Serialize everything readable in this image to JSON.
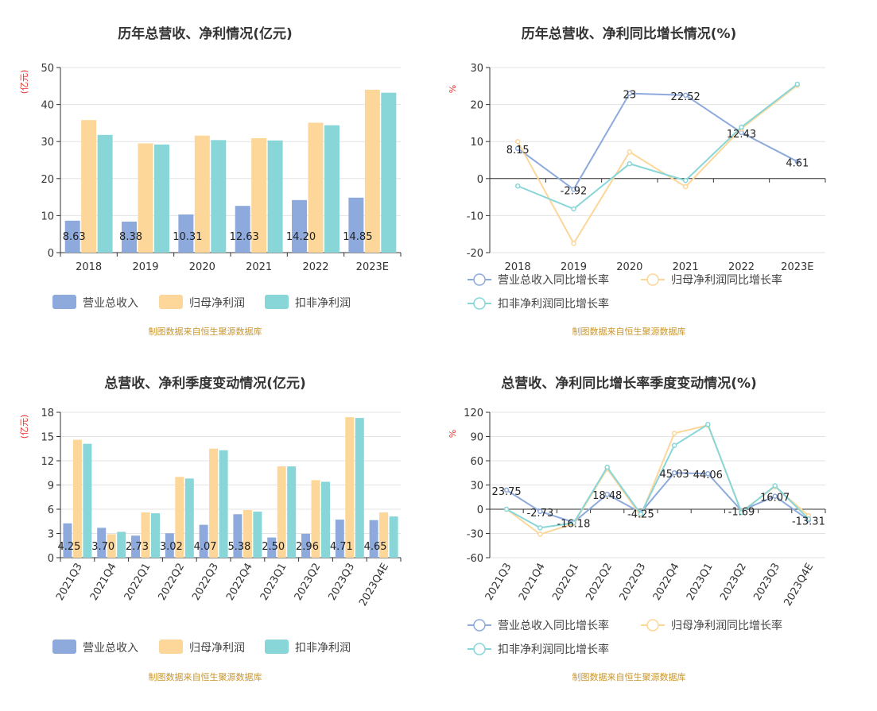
{
  "colors": {
    "revenue": "#8eaadc",
    "net_profit": "#fdd699",
    "deducted_profit": "#88d6d8",
    "axis": "#333333",
    "grid": "#e3e3e3",
    "title": "#333333",
    "unit": "#e8312a",
    "source": "#c9962e"
  },
  "chart_data": [
    {
      "type": "bar",
      "title": "历年总营收、净利情况(亿元)",
      "unit_label": "(亿元)",
      "categories": [
        "2018",
        "2019",
        "2020",
        "2021",
        "2022",
        "2023E"
      ],
      "ylim": [
        0,
        50
      ],
      "yticks": [
        0,
        10,
        20,
        30,
        40,
        50
      ],
      "series": [
        {
          "name": "营业总收入",
          "values": [
            8.63,
            8.38,
            10.31,
            12.63,
            14.2,
            14.85
          ],
          "labels": [
            "8.63",
            "8.38",
            "10.31",
            "12.63",
            "14.20",
            "14.85"
          ]
        },
        {
          "name": "归母净利润",
          "values": [
            35.8,
            29.5,
            31.6,
            30.9,
            35.1,
            44.0
          ]
        },
        {
          "name": "扣非净利润",
          "values": [
            31.8,
            29.2,
            30.4,
            30.3,
            34.4,
            43.2
          ]
        }
      ],
      "legend_position": "bottom",
      "source": "制图数据来自恒生聚源数据库"
    },
    {
      "type": "line",
      "title": "历年总营收、净利同比增长情况(%)",
      "unit_label": "%",
      "categories": [
        "2018",
        "2019",
        "2020",
        "2021",
        "2022",
        "2023E"
      ],
      "ylim": [
        -20,
        30
      ],
      "yticks": [
        -20,
        -10,
        0,
        10,
        20,
        30
      ],
      "series": [
        {
          "name": "营业总收入同比增长率",
          "values": [
            8.15,
            -2.92,
            23,
            22.52,
            12.43,
            4.61
          ],
          "labels": [
            "8.15",
            "-2.92",
            "23",
            "22.52",
            "12.43",
            "4.61"
          ]
        },
        {
          "name": "归母净利润同比增长率",
          "values": [
            10.0,
            -17.5,
            7.2,
            -2.2,
            13.5,
            25.2
          ]
        },
        {
          "name": "扣非净利润同比增长率",
          "values": [
            -2.0,
            -8.2,
            4.0,
            -0.5,
            13.9,
            25.5
          ]
        }
      ],
      "legend_position": "bottom",
      "source": "制图数据来自恒生聚源数据库"
    },
    {
      "type": "bar",
      "title": "总营收、净利季度变动情况(亿元)",
      "unit_label": "(亿元)",
      "categories": [
        "2021Q3",
        "2021Q4",
        "2022Q1",
        "2022Q2",
        "2022Q3",
        "2022Q4",
        "2023Q1",
        "2023Q2",
        "2023Q3",
        "2023Q4E"
      ],
      "ylim": [
        0,
        18
      ],
      "yticks": [
        0,
        3,
        6,
        9,
        12,
        15,
        18
      ],
      "series": [
        {
          "name": "营业总收入",
          "values": [
            4.25,
            3.7,
            2.73,
            3.02,
            4.07,
            5.38,
            2.5,
            2.96,
            4.71,
            4.65
          ],
          "labels": [
            "4.25",
            "3.70",
            "2.73",
            "3.02",
            "4.07",
            "5.38",
            "2.50",
            "2.96",
            "4.71",
            "4.65"
          ]
        },
        {
          "name": "归母净利润",
          "values": [
            14.6,
            2.9,
            5.6,
            10.0,
            13.5,
            5.9,
            11.3,
            9.6,
            17.4,
            5.6
          ]
        },
        {
          "name": "扣非净利润",
          "values": [
            14.1,
            3.2,
            5.5,
            9.8,
            13.3,
            5.7,
            11.3,
            9.4,
            17.3,
            5.1
          ]
        }
      ],
      "legend_position": "bottom",
      "source": "制图数据来自恒生聚源数据库"
    },
    {
      "type": "line",
      "title": "总营收、净利同比增长率季度变动情况(%)",
      "unit_label": "%",
      "categories": [
        "2021Q3",
        "2021Q4",
        "2022Q1",
        "2022Q2",
        "2022Q3",
        "2022Q4",
        "2023Q1",
        "2023Q2",
        "2023Q3",
        "2023Q4E"
      ],
      "ylim": [
        -60,
        120
      ],
      "yticks": [
        -60,
        -30,
        0,
        30,
        60,
        90,
        120
      ],
      "series": [
        {
          "name": "营业总收入同比增长率",
          "values": [
            23.75,
            -2.73,
            -16.18,
            18.48,
            -4.25,
            45.03,
            44.06,
            -1.69,
            16.07,
            -13.31
          ],
          "labels": [
            "23.75",
            "-2.73",
            "-16.18",
            "18.48",
            "-4.25",
            "45.03",
            "44.06",
            "-1.69",
            "16.07",
            "-13.31"
          ]
        },
        {
          "name": "归母净利润同比增长率",
          "values": [
            0,
            -31,
            -18,
            50,
            -8,
            94,
            104,
            -3,
            28,
            -8
          ]
        },
        {
          "name": "扣非净利润同比增长率",
          "values": [
            0,
            -23,
            -17,
            52,
            -6,
            79,
            105,
            -4,
            29,
            -12
          ]
        }
      ],
      "legend_position": "bottom",
      "source": "制图数据来自恒生聚源数据库"
    }
  ]
}
